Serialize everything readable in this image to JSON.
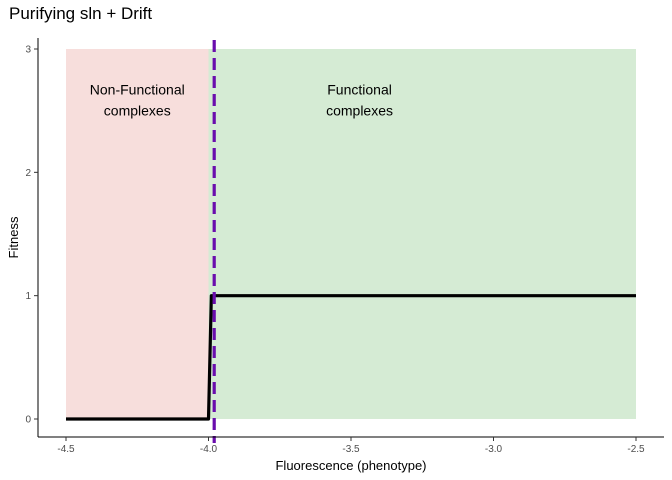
{
  "chart_data": {
    "type": "line",
    "title": "Purifying sln + Drift",
    "xlabel": "Fluorescence (phenotype)",
    "ylabel": "Fitness",
    "xlim": [
      -4.5,
      -2.5
    ],
    "ylim": [
      0,
      3
    ],
    "x_ticks": [
      -4.5,
      -4.0,
      -3.5,
      -3.0,
      -2.5
    ],
    "x_tick_labels": [
      "-4.5",
      "-4.0",
      "-3.5",
      "-3.0",
      "-2.5"
    ],
    "y_ticks": [
      0,
      1,
      2,
      3
    ],
    "y_tick_labels": [
      "0",
      "1",
      "2",
      "3"
    ],
    "grid": false,
    "regions": [
      {
        "x_from": -4.5,
        "x_to": -4.0,
        "y_from": 0,
        "y_to": 3,
        "color": "#f7dedc",
        "label_lines": [
          "Non-Functional",
          "complexes"
        ],
        "label_x": -4.25,
        "label_y": 2.55
      },
      {
        "x_from": -4.0,
        "x_to": -2.5,
        "y_from": 0,
        "y_to": 3,
        "color": "#d5ebd4",
        "label_lines": [
          "Functional",
          "complexes"
        ],
        "label_x": -3.47,
        "label_y": 2.55
      }
    ],
    "series": [
      {
        "x": [
          -4.5,
          -4.0,
          -3.99,
          -2.5
        ],
        "y": [
          0,
          0,
          1,
          1
        ],
        "color": "#000000"
      }
    ],
    "threshold": {
      "x": -3.98,
      "color": "#6a0dad",
      "style": "dashed"
    }
  }
}
